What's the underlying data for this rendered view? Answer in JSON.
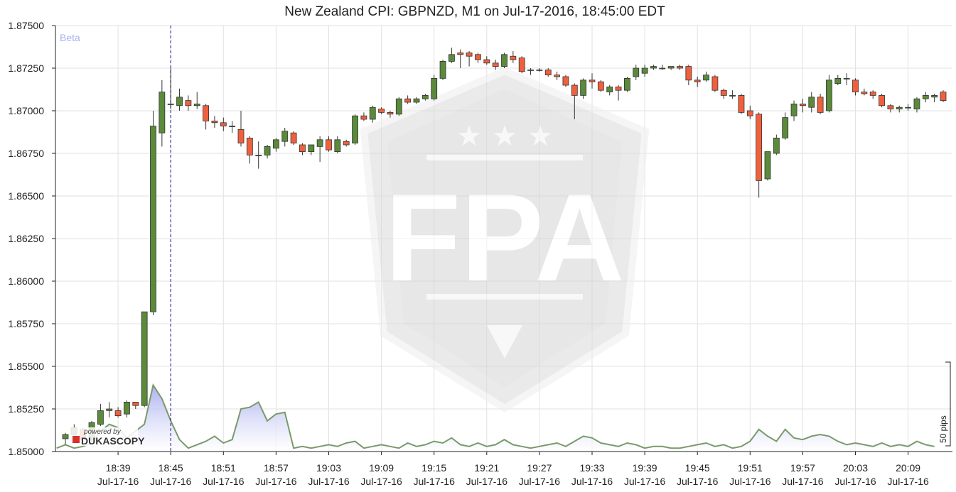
{
  "chart_data": {
    "type": "candlestick",
    "title": "New Zealand CPI: GBPNZD, M1 on Jul-17-2016, 18:45:00 EDT",
    "badge": "Beta",
    "y_ticks": [
      "1.87500",
      "1.87250",
      "1.87000",
      "1.86750",
      "1.86500",
      "1.86250",
      "1.86000",
      "1.85750",
      "1.85500",
      "1.85250",
      "1.85000"
    ],
    "ylim": [
      1.85,
      1.875
    ],
    "x_ticks": [
      {
        "time": "18:39",
        "date": "Jul-17-16"
      },
      {
        "time": "18:45",
        "date": "Jul-17-16"
      },
      {
        "time": "18:51",
        "date": "Jul-17-16"
      },
      {
        "time": "18:57",
        "date": "Jul-17-16"
      },
      {
        "time": "19:03",
        "date": "Jul-17-16"
      },
      {
        "time": "19:09",
        "date": "Jul-17-16"
      },
      {
        "time": "19:15",
        "date": "Jul-17-16"
      },
      {
        "time": "19:21",
        "date": "Jul-17-16"
      },
      {
        "time": "19:27",
        "date": "Jul-17-16"
      },
      {
        "time": "19:33",
        "date": "Jul-17-16"
      },
      {
        "time": "19:39",
        "date": "Jul-17-16"
      },
      {
        "time": "19:45",
        "date": "Jul-17-16"
      },
      {
        "time": "19:51",
        "date": "Jul-17-16"
      },
      {
        "time": "19:57",
        "date": "Jul-17-16"
      },
      {
        "time": "20:03",
        "date": "Jul-17-16"
      },
      {
        "time": "20:09",
        "date": "Jul-17-16"
      }
    ],
    "event_time": "18:45",
    "up_color": "#5a8a3a",
    "down_color": "#f0603c",
    "volume_fill": "#a8acf0",
    "volume_line": "#7a9a6a",
    "volume_scale_label": "50 pips",
    "candles": [
      {
        "t": "18:33",
        "o": 1.85075,
        "h": 1.8511,
        "l": 1.8504,
        "c": 1.851
      },
      {
        "t": "18:34",
        "o": 1.851,
        "h": 1.8516,
        "l": 1.8508,
        "c": 1.8514
      },
      {
        "t": "18:35",
        "o": 1.8513,
        "h": 1.8514,
        "l": 1.8505,
        "c": 1.8507
      },
      {
        "t": "18:36",
        "o": 1.8507,
        "h": 1.8518,
        "l": 1.8505,
        "c": 1.8517
      },
      {
        "t": "18:37",
        "o": 1.8516,
        "h": 1.8528,
        "l": 1.8515,
        "c": 1.8524
      },
      {
        "t": "18:38",
        "o": 1.8524,
        "h": 1.8529,
        "l": 1.852,
        "c": 1.8525
      },
      {
        "t": "18:39",
        "o": 1.8524,
        "h": 1.8526,
        "l": 1.852,
        "c": 1.8521
      },
      {
        "t": "18:40",
        "o": 1.8522,
        "h": 1.853,
        "l": 1.852,
        "c": 1.8529
      },
      {
        "t": "18:41",
        "o": 1.8529,
        "h": 1.8529,
        "l": 1.8525,
        "c": 1.8527
      },
      {
        "t": "18:42",
        "o": 1.8527,
        "h": 1.8582,
        "l": 1.8526,
        "c": 1.8582
      },
      {
        "t": "18:43",
        "o": 1.8582,
        "h": 1.87,
        "l": 1.858,
        "c": 1.8691
      },
      {
        "t": "18:44",
        "o": 1.8687,
        "h": 1.8718,
        "l": 1.8679,
        "c": 1.8711
      },
      {
        "t": "18:45",
        "o": 1.8704,
        "h": 1.8725,
        "l": 1.8701,
        "c": 1.8704
      },
      {
        "t": "18:46",
        "o": 1.8703,
        "h": 1.8713,
        "l": 1.87,
        "c": 1.8708
      },
      {
        "t": "18:47",
        "o": 1.8706,
        "h": 1.8709,
        "l": 1.87,
        "c": 1.8703
      },
      {
        "t": "18:48",
        "o": 1.8703,
        "h": 1.8711,
        "l": 1.8701,
        "c": 1.8704
      },
      {
        "t": "18:49",
        "o": 1.8703,
        "h": 1.8704,
        "l": 1.8689,
        "c": 1.8694
      },
      {
        "t": "18:50",
        "o": 1.8694,
        "h": 1.8697,
        "l": 1.869,
        "c": 1.8693
      },
      {
        "t": "18:51",
        "o": 1.8693,
        "h": 1.8696,
        "l": 1.8688,
        "c": 1.8691
      },
      {
        "t": "18:52",
        "o": 1.8691,
        "h": 1.8694,
        "l": 1.8687,
        "c": 1.8691
      },
      {
        "t": "18:53",
        "o": 1.8689,
        "h": 1.87,
        "l": 1.8679,
        "c": 1.8681
      },
      {
        "t": "18:54",
        "o": 1.8684,
        "h": 1.8685,
        "l": 1.8669,
        "c": 1.8674
      },
      {
        "t": "18:55",
        "o": 1.8674,
        "h": 1.8682,
        "l": 1.8666,
        "c": 1.8674
      },
      {
        "t": "18:56",
        "o": 1.8674,
        "h": 1.868,
        "l": 1.8672,
        "c": 1.8679
      },
      {
        "t": "18:57",
        "o": 1.8678,
        "h": 1.8684,
        "l": 1.8676,
        "c": 1.8683
      },
      {
        "t": "18:58",
        "o": 1.8682,
        "h": 1.869,
        "l": 1.8679,
        "c": 1.8688
      },
      {
        "t": "18:59",
        "o": 1.8687,
        "h": 1.8688,
        "l": 1.868,
        "c": 1.8681
      },
      {
        "t": "19:00",
        "o": 1.868,
        "h": 1.8681,
        "l": 1.8674,
        "c": 1.8676
      },
      {
        "t": "19:01",
        "o": 1.8676,
        "h": 1.868,
        "l": 1.8674,
        "c": 1.868
      },
      {
        "t": "19:02",
        "o": 1.8679,
        "h": 1.8685,
        "l": 1.867,
        "c": 1.8683
      },
      {
        "t": "19:03",
        "o": 1.8683,
        "h": 1.8685,
        "l": 1.8676,
        "c": 1.8677
      },
      {
        "t": "19:04",
        "o": 1.8676,
        "h": 1.8685,
        "l": 1.8675,
        "c": 1.8683
      },
      {
        "t": "19:05",
        "o": 1.8682,
        "h": 1.8683,
        "l": 1.8679,
        "c": 1.868
      },
      {
        "t": "19:06",
        "o": 1.8681,
        "h": 1.8698,
        "l": 1.868,
        "c": 1.8697
      },
      {
        "t": "19:07",
        "o": 1.8697,
        "h": 1.8699,
        "l": 1.8694,
        "c": 1.8695
      },
      {
        "t": "19:08",
        "o": 1.8695,
        "h": 1.8703,
        "l": 1.8693,
        "c": 1.8702
      },
      {
        "t": "19:09",
        "o": 1.8701,
        "h": 1.8702,
        "l": 1.8698,
        "c": 1.8699
      },
      {
        "t": "19:10",
        "o": 1.8699,
        "h": 1.87,
        "l": 1.8696,
        "c": 1.8698
      },
      {
        "t": "19:11",
        "o": 1.8698,
        "h": 1.8708,
        "l": 1.8697,
        "c": 1.8707
      },
      {
        "t": "19:12",
        "o": 1.8707,
        "h": 1.8709,
        "l": 1.8704,
        "c": 1.8705
      },
      {
        "t": "19:13",
        "o": 1.8705,
        "h": 1.8708,
        "l": 1.8704,
        "c": 1.8707
      },
      {
        "t": "19:14",
        "o": 1.8707,
        "h": 1.871,
        "l": 1.8706,
        "c": 1.8709
      },
      {
        "t": "19:15",
        "o": 1.8707,
        "h": 1.8721,
        "l": 1.8706,
        "c": 1.8719
      },
      {
        "t": "19:16",
        "o": 1.8719,
        "h": 1.873,
        "l": 1.8718,
        "c": 1.8729
      },
      {
        "t": "19:17",
        "o": 1.8729,
        "h": 1.8737,
        "l": 1.8728,
        "c": 1.8733
      },
      {
        "t": "19:18",
        "o": 1.8734,
        "h": 1.8736,
        "l": 1.8725,
        "c": 1.8733
      },
      {
        "t": "19:19",
        "o": 1.8734,
        "h": 1.8735,
        "l": 1.8726,
        "c": 1.8732
      },
      {
        "t": "19:20",
        "o": 1.8733,
        "h": 1.8734,
        "l": 1.8728,
        "c": 1.873
      },
      {
        "t": "19:21",
        "o": 1.873,
        "h": 1.8732,
        "l": 1.8727,
        "c": 1.8728
      },
      {
        "t": "19:22",
        "o": 1.8728,
        "h": 1.873,
        "l": 1.8724,
        "c": 1.8726
      },
      {
        "t": "19:23",
        "o": 1.8726,
        "h": 1.8734,
        "l": 1.8725,
        "c": 1.8733
      },
      {
        "t": "19:24",
        "o": 1.8732,
        "h": 1.8735,
        "l": 1.8728,
        "c": 1.873
      },
      {
        "t": "19:25",
        "o": 1.8731,
        "h": 1.8732,
        "l": 1.8722,
        "c": 1.8723
      },
      {
        "t": "19:26",
        "o": 1.8724,
        "h": 1.8725,
        "l": 1.8721,
        "c": 1.8724
      },
      {
        "t": "19:27",
        "o": 1.8724,
        "h": 1.8725,
        "l": 1.8723,
        "c": 1.8724
      },
      {
        "t": "19:28",
        "o": 1.8724,
        "h": 1.8725,
        "l": 1.872,
        "c": 1.8721
      },
      {
        "t": "19:29",
        "o": 1.8721,
        "h": 1.8723,
        "l": 1.8718,
        "c": 1.872
      },
      {
        "t": "19:30",
        "o": 1.872,
        "h": 1.8721,
        "l": 1.8714,
        "c": 1.8715
      },
      {
        "t": "19:31",
        "o": 1.8715,
        "h": 1.8716,
        "l": 1.8695,
        "c": 1.8709
      },
      {
        "t": "19:32",
        "o": 1.8709,
        "h": 1.8719,
        "l": 1.8707,
        "c": 1.8718
      },
      {
        "t": "19:33",
        "o": 1.8718,
        "h": 1.8722,
        "l": 1.8713,
        "c": 1.8717
      },
      {
        "t": "19:34",
        "o": 1.8717,
        "h": 1.8718,
        "l": 1.8711,
        "c": 1.8712
      },
      {
        "t": "19:35",
        "o": 1.8711,
        "h": 1.8715,
        "l": 1.8709,
        "c": 1.8714
      },
      {
        "t": "19:36",
        "o": 1.8714,
        "h": 1.8715,
        "l": 1.8706,
        "c": 1.8712
      },
      {
        "t": "19:37",
        "o": 1.8712,
        "h": 1.872,
        "l": 1.8711,
        "c": 1.8719
      },
      {
        "t": "19:38",
        "o": 1.872,
        "h": 1.8727,
        "l": 1.8718,
        "c": 1.8725
      },
      {
        "t": "19:39",
        "o": 1.8722,
        "h": 1.8727,
        "l": 1.872,
        "c": 1.8725
      },
      {
        "t": "19:40",
        "o": 1.8725,
        "h": 1.8727,
        "l": 1.8724,
        "c": 1.8726
      },
      {
        "t": "19:41",
        "o": 1.8725,
        "h": 1.8727,
        "l": 1.8724,
        "c": 1.8725
      },
      {
        "t": "19:42",
        "o": 1.8725,
        "h": 1.8726,
        "l": 1.8724,
        "c": 1.8726
      },
      {
        "t": "19:43",
        "o": 1.8726,
        "h": 1.8727,
        "l": 1.8724,
        "c": 1.8725
      },
      {
        "t": "19:44",
        "o": 1.8726,
        "h": 1.8727,
        "l": 1.8715,
        "c": 1.8718
      },
      {
        "t": "19:45",
        "o": 1.8718,
        "h": 1.872,
        "l": 1.8714,
        "c": 1.8717
      },
      {
        "t": "19:46",
        "o": 1.8718,
        "h": 1.8723,
        "l": 1.8717,
        "c": 1.8721
      },
      {
        "t": "19:47",
        "o": 1.872,
        "h": 1.8721,
        "l": 1.8711,
        "c": 1.8712
      },
      {
        "t": "19:48",
        "o": 1.8712,
        "h": 1.8713,
        "l": 1.8707,
        "c": 1.8709
      },
      {
        "t": "19:49",
        "o": 1.8709,
        "h": 1.8712,
        "l": 1.8707,
        "c": 1.8709
      },
      {
        "t": "19:50",
        "o": 1.8709,
        "h": 1.871,
        "l": 1.8698,
        "c": 1.8699
      },
      {
        "t": "19:51",
        "o": 1.87,
        "h": 1.8703,
        "l": 1.8695,
        "c": 1.8697
      },
      {
        "t": "19:52",
        "o": 1.8698,
        "h": 1.8699,
        "l": 1.8649,
        "c": 1.8659
      },
      {
        "t": "19:53",
        "o": 1.866,
        "h": 1.8676,
        "l": 1.8659,
        "c": 1.8676
      },
      {
        "t": "19:54",
        "o": 1.8675,
        "h": 1.8686,
        "l": 1.8674,
        "c": 1.8684
      },
      {
        "t": "19:55",
        "o": 1.8684,
        "h": 1.8699,
        "l": 1.8683,
        "c": 1.8696
      },
      {
        "t": "19:56",
        "o": 1.8697,
        "h": 1.8706,
        "l": 1.8694,
        "c": 1.8704
      },
      {
        "t": "19:57",
        "o": 1.8704,
        "h": 1.8707,
        "l": 1.8699,
        "c": 1.8703
      },
      {
        "t": "19:58",
        "o": 1.8702,
        "h": 1.8711,
        "l": 1.8699,
        "c": 1.8708
      },
      {
        "t": "19:59",
        "o": 1.8708,
        "h": 1.871,
        "l": 1.8698,
        "c": 1.8699
      },
      {
        "t": "20:00",
        "o": 1.87,
        "h": 1.8721,
        "l": 1.8699,
        "c": 1.8718
      },
      {
        "t": "20:01",
        "o": 1.8716,
        "h": 1.8721,
        "l": 1.8715,
        "c": 1.8719
      },
      {
        "t": "20:02",
        "o": 1.8719,
        "h": 1.8722,
        "l": 1.8715,
        "c": 1.8719
      },
      {
        "t": "20:03",
        "o": 1.8718,
        "h": 1.8719,
        "l": 1.8709,
        "c": 1.8711
      },
      {
        "t": "20:04",
        "o": 1.8711,
        "h": 1.8713,
        "l": 1.8709,
        "c": 1.871
      },
      {
        "t": "20:05",
        "o": 1.8711,
        "h": 1.8712,
        "l": 1.8707,
        "c": 1.8709
      },
      {
        "t": "20:06",
        "o": 1.8709,
        "h": 1.871,
        "l": 1.8702,
        "c": 1.8703
      },
      {
        "t": "20:07",
        "o": 1.8703,
        "h": 1.8704,
        "l": 1.8699,
        "c": 1.8701
      },
      {
        "t": "20:08",
        "o": 1.8701,
        "h": 1.8703,
        "l": 1.8699,
        "c": 1.8702
      },
      {
        "t": "20:09",
        "o": 1.8702,
        "h": 1.8704,
        "l": 1.87,
        "c": 1.8702
      },
      {
        "t": "20:10",
        "o": 1.8701,
        "h": 1.8708,
        "l": 1.8699,
        "c": 1.8707
      },
      {
        "t": "20:11",
        "o": 1.8707,
        "h": 1.8711,
        "l": 1.8705,
        "c": 1.8709
      },
      {
        "t": "20:12",
        "o": 1.8708,
        "h": 1.871,
        "l": 1.8705,
        "c": 1.8709
      },
      {
        "t": "20:13",
        "o": 1.8711,
        "h": 1.8712,
        "l": 1.8705,
        "c": 1.8706
      }
    ],
    "volume": [
      0.02,
      0.04,
      0.02,
      0.03,
      0.05,
      0.12,
      0.16,
      0.14,
      0.08,
      0.12,
      0.16,
      0.39,
      0.31,
      0.18,
      0.07,
      0.02,
      0.04,
      0.06,
      0.09,
      0.05,
      0.07,
      0.25,
      0.26,
      0.29,
      0.18,
      0.22,
      0.23,
      0.02,
      0.03,
      0.02,
      0.03,
      0.04,
      0.03,
      0.05,
      0.06,
      0.02,
      0.03,
      0.04,
      0.03,
      0.02,
      0.05,
      0.03,
      0.04,
      0.06,
      0.05,
      0.08,
      0.04,
      0.03,
      0.05,
      0.03,
      0.04,
      0.07,
      0.04,
      0.03,
      0.02,
      0.03,
      0.04,
      0.05,
      0.03,
      0.06,
      0.09,
      0.08,
      0.05,
      0.04,
      0.03,
      0.05,
      0.04,
      0.02,
      0.03,
      0.03,
      0.02,
      0.02,
      0.03,
      0.04,
      0.05,
      0.03,
      0.04,
      0.02,
      0.03,
      0.06,
      0.13,
      0.09,
      0.06,
      0.13,
      0.08,
      0.07,
      0.09,
      0.1,
      0.09,
      0.06,
      0.04,
      0.05,
      0.04,
      0.03,
      0.05,
      0.03,
      0.04,
      0.03,
      0.06,
      0.04,
      0.03
    ]
  },
  "branding": {
    "powered_by": "powered by",
    "brand_name": "DUKASCOPY",
    "watermark": "FPA"
  }
}
